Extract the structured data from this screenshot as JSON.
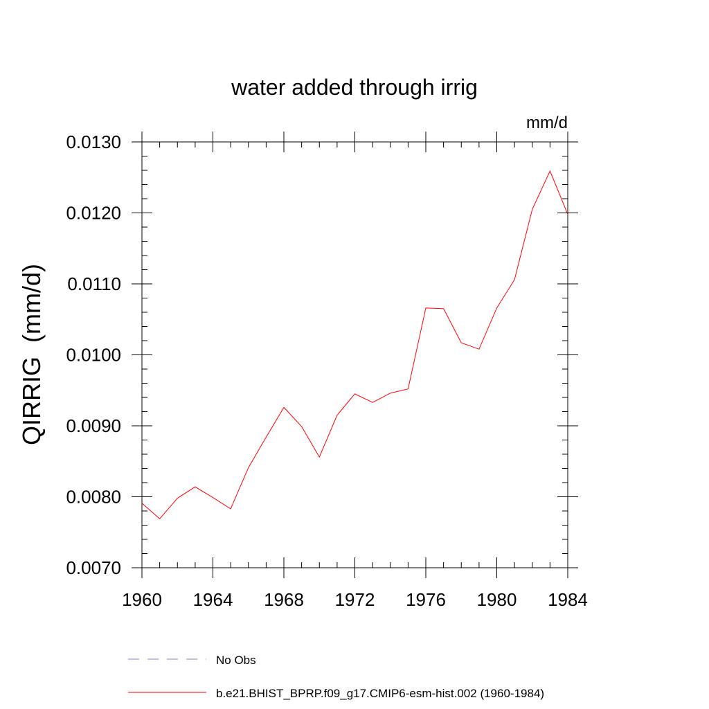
{
  "chart_data": {
    "type": "line",
    "title": "water added through irrig",
    "units_label": "mm/d",
    "ylabel": "QIRRIG  (mm/d)",
    "xlabel": "",
    "xlim": [
      1960,
      1984
    ],
    "ylim": [
      0.007,
      0.013
    ],
    "x_ticks": [
      1960,
      1964,
      1968,
      1972,
      1976,
      1980,
      1984
    ],
    "x_tick_labels": [
      "1960",
      "1964",
      "1968",
      "1972",
      "1976",
      "1980",
      "1984"
    ],
    "y_ticks": [
      0.007,
      0.008,
      0.009,
      0.01,
      0.011,
      0.012,
      0.013
    ],
    "y_tick_labels": [
      "0.0070",
      "0.0080",
      "0.0090",
      "0.0100",
      "0.0110",
      "0.0120",
      "0.0130"
    ],
    "x_minor_step": 1,
    "y_minor_step": 0.0002,
    "grid": false,
    "legend_position": "bottom",
    "series": [
      {
        "name": "b.e21.BHIST_BPRP.f09_g17.CMIP6-esm-hist.002 (1960-1984)",
        "color": "#ff0000",
        "dash": "solid",
        "x": [
          1960,
          1961,
          1962,
          1963,
          1964,
          1965,
          1966,
          1967,
          1968,
          1969,
          1970,
          1971,
          1972,
          1973,
          1974,
          1975,
          1976,
          1977,
          1978,
          1979,
          1980,
          1981,
          1982,
          1983,
          1984
        ],
        "values": [
          0.00791,
          0.00769,
          0.00798,
          0.00814,
          0.00799,
          0.00783,
          0.00841,
          0.00884,
          0.00926,
          0.00899,
          0.00856,
          0.00915,
          0.00945,
          0.00933,
          0.00946,
          0.00952,
          0.01066,
          0.01065,
          0.01017,
          0.01008,
          0.01066,
          0.01106,
          0.01205,
          0.01259,
          0.01198
        ]
      }
    ],
    "legend": [
      {
        "label": "No Obs",
        "color": "#7f7fbf",
        "dash": "dashed"
      },
      {
        "label": "b.e21.BHIST_BPRP.f09_g17.CMIP6-esm-hist.002 (1960-1984)",
        "color": "#ff0000",
        "dash": "solid"
      }
    ]
  }
}
